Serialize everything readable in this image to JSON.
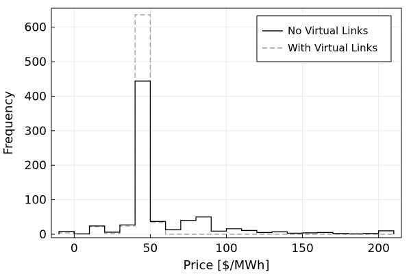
{
  "chart_data": {
    "type": "step-histogram",
    "title": "",
    "xlabel": "Price [$/MWh]",
    "ylabel": "Frequency",
    "xlim": [
      -15,
      215
    ],
    "ylim": [
      -10,
      655
    ],
    "xticks": [
      0,
      50,
      100,
      150,
      200
    ],
    "yticks": [
      0,
      100,
      200,
      300,
      400,
      500,
      600
    ],
    "grid": true,
    "legend_position": "top-right",
    "bin_width": 10,
    "bin_edges": [
      -10,
      0,
      10,
      20,
      30,
      40,
      50,
      60,
      70,
      80,
      90,
      100,
      110,
      120,
      130,
      140,
      150,
      160,
      170,
      180,
      190,
      200,
      210
    ],
    "series": [
      {
        "name": "No Virtual Links",
        "style": "solid",
        "color": "#000000",
        "values": [
          8,
          1,
          24,
          6,
          27,
          444,
          37,
          13,
          40,
          50,
          9,
          16,
          11,
          5,
          7,
          3,
          4,
          5,
          2,
          1,
          2,
          10
        ]
      },
      {
        "name": "With Virtual Links",
        "style": "dashed",
        "color": "#9e9e9e",
        "values": [
          4,
          1,
          22,
          2,
          24,
          636,
          34,
          0,
          0,
          0,
          0,
          0,
          0,
          0,
          0,
          0,
          0,
          0,
          0,
          0,
          0,
          0
        ]
      }
    ]
  }
}
